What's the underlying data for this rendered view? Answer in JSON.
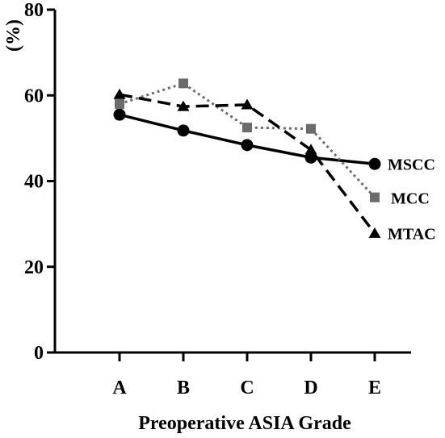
{
  "chart_data": {
    "type": "line",
    "title": "",
    "xlabel": "Preoperative ASIA Grade",
    "ylabel": "(%)",
    "categories": [
      "A",
      "B",
      "C",
      "D",
      "E"
    ],
    "ylim": [
      0,
      80
    ],
    "yticks": [
      0,
      20,
      40,
      60,
      80
    ],
    "grid": false,
    "legend": "inline labels at right end of each line",
    "series": [
      {
        "name": "MSCC",
        "marker": "circle",
        "line_style": "solid",
        "color": "#000000",
        "values": [
          55.5,
          51.8,
          48.4,
          45.5,
          44.0
        ]
      },
      {
        "name": "MCC",
        "marker": "square",
        "line_style": "dotted",
        "color": "#6b6b6b",
        "values": [
          58.0,
          62.8,
          52.5,
          52.2,
          36.2
        ]
      },
      {
        "name": "MTAC",
        "marker": "triangle",
        "line_style": "dashed",
        "color": "#000000",
        "values": [
          60.2,
          57.4,
          57.8,
          47.3,
          27.8
        ]
      }
    ]
  }
}
